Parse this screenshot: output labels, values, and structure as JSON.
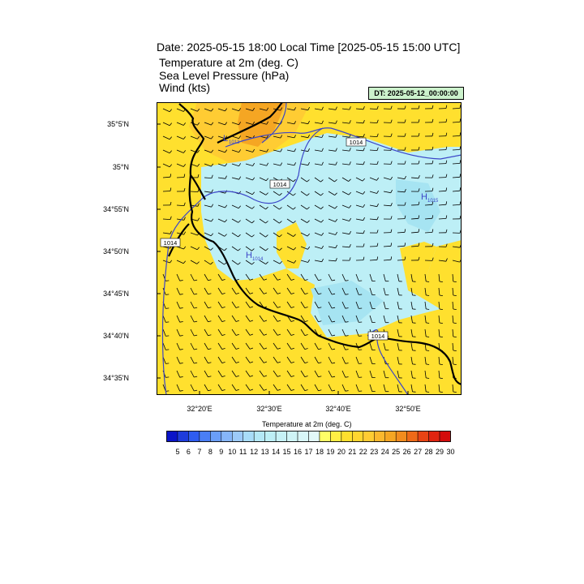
{
  "header": {
    "title": "Date: 2025-05-15  18:00 Local Time [2025-05-15  15:00 UTC]",
    "lines": [
      "Temperature at 2m   (deg. C)",
      "Sea Level Pressure   (hPa)",
      "Wind   (kts)"
    ],
    "dt_label": "DT: 2025-05-12_00:00:00"
  },
  "map": {
    "lat_labels": [
      "35°5'N",
      "35°N",
      "34°55'N",
      "34°50'N",
      "34°45'N",
      "34°40'N",
      "34°35'N"
    ],
    "lon_labels": [
      "32°20'E",
      "32°30'E",
      "32°40'E",
      "32°50'E"
    ],
    "isobar_labels": [
      "1014",
      "1014",
      "1014",
      "1014"
    ],
    "pressure_centers": [
      {
        "letter": "L",
        "value": "1013"
      },
      {
        "letter": "H",
        "value": "1014"
      },
      {
        "letter": "H",
        "value": "1015"
      }
    ],
    "colors": {
      "warm": "#ffe02e",
      "warm2": "#ffcc33",
      "warm3": "#f5a623",
      "cool": "#bdeff6",
      "cool2": "#a6e4f2",
      "isobar": "#3c46c8",
      "coast": "#000000"
    }
  },
  "colorbar": {
    "title": "Temperature at 2m  (deg. C)",
    "labels": [
      "5",
      "6",
      "7",
      "8",
      "9",
      "10",
      "11",
      "12",
      "13",
      "14",
      "15",
      "16",
      "17",
      "18",
      "19",
      "20",
      "21",
      "22",
      "23",
      "24",
      "25",
      "26",
      "27",
      "28",
      "29",
      "30"
    ],
    "colors": [
      "#0a14c8",
      "#1e3cdc",
      "#2e5cf0",
      "#4a7ef5",
      "#6a9ef8",
      "#86b6f9",
      "#9ccaf9",
      "#a8dcf8",
      "#b4e8f6",
      "#bdeff6",
      "#c6f2f6",
      "#cff5f7",
      "#d8f7f8",
      "#e2f9f9",
      "#ffff66",
      "#ffee44",
      "#ffe02e",
      "#ffd630",
      "#ffcc33",
      "#fbb82e",
      "#f5a623",
      "#f28c1e",
      "#ee6a18",
      "#e84414",
      "#e02410",
      "#d40c0c"
    ]
  }
}
